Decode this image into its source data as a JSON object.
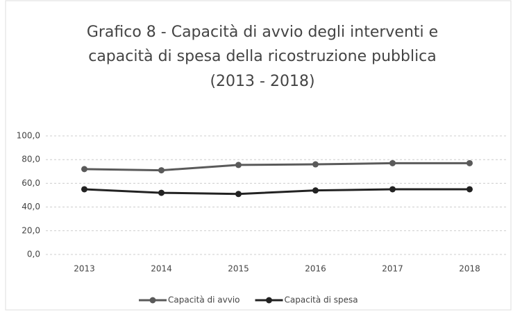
{
  "chart_data": {
    "type": "line",
    "title": [
      "Grafico 8 - Capacità di avvio degli interventi e",
      "capacità di spesa della ricostruzione pubblica",
      "(2013 - 2018)"
    ],
    "categories": [
      "2013",
      "2014",
      "2015",
      "2016",
      "2017",
      "2018"
    ],
    "series": [
      {
        "name": "Capacità di avvio",
        "color": "#5a5a5a",
        "values": [
          72,
          71,
          75.5,
          76,
          77,
          77
        ]
      },
      {
        "name": "Capacità di spesa",
        "color": "#222222",
        "values": [
          55,
          52,
          51,
          54,
          55,
          55
        ]
      }
    ],
    "ylim": [
      0,
      100
    ],
    "yticks": [
      {
        "value": 0,
        "label": "0,0"
      },
      {
        "value": 20,
        "label": "20,0"
      },
      {
        "value": 40,
        "label": "40,0"
      },
      {
        "value": 60,
        "label": "60,0"
      },
      {
        "value": 80,
        "label": "80,0"
      },
      {
        "value": 100,
        "label": "100,0"
      }
    ],
    "grid": true,
    "legend": "bottom"
  }
}
